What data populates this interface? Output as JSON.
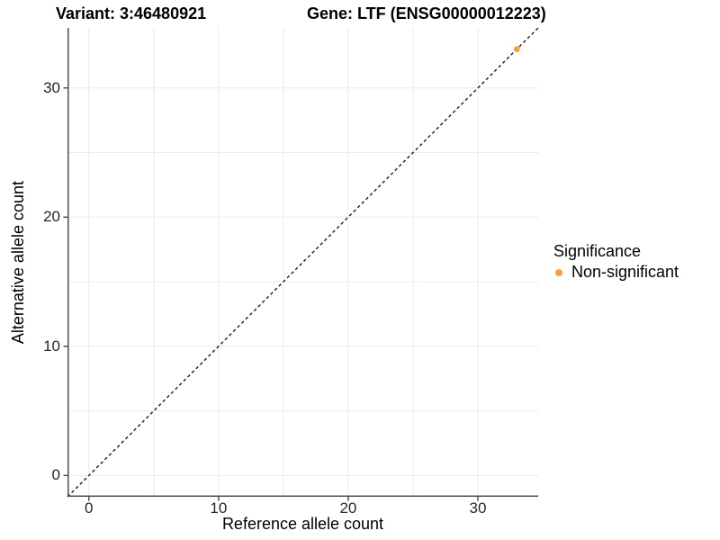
{
  "header": {
    "variant_title": "Variant: 3:46480921",
    "gene_title": "Gene: LTF (ENSG00000012223)"
  },
  "chart_data": {
    "type": "scatter",
    "xlabel": "Reference allele count",
    "ylabel": "Alternative allele count",
    "xlim": [
      -1.65,
      34.65
    ],
    "ylim": [
      -1.65,
      34.65
    ],
    "x_major_ticks": [
      0,
      10,
      20,
      30
    ],
    "y_major_ticks": [
      0,
      10,
      20,
      30
    ],
    "x_minor_gridlines": [
      5,
      15,
      25
    ],
    "y_minor_gridlines": [
      5,
      15,
      25
    ],
    "grid": "major+minor, light gray, white panel background",
    "identity_line": {
      "slope": 1,
      "intercept": 0,
      "style": "dashed",
      "color": "#1a1a1a"
    },
    "series": [
      {
        "name": "Non-significant",
        "color": "#F9A03C",
        "points": [
          {
            "x": 33,
            "y": 33
          }
        ]
      }
    ],
    "legend": {
      "title": "Significance",
      "position": "right",
      "entries": [
        {
          "label": "Non-significant",
          "color": "#F9A03C"
        }
      ]
    }
  },
  "style": {
    "grid_color": "#ebebeb",
    "axis_line_color": "#4d4d4d",
    "tick_color": "#333333",
    "point_radius": 3.4
  }
}
